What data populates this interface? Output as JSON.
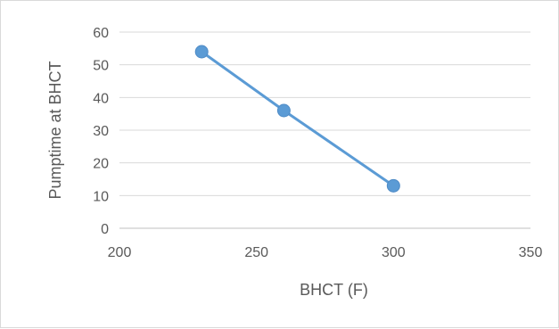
{
  "chart_data": {
    "type": "scatter",
    "title": "",
    "xlabel": "BHCT (F)",
    "ylabel": "Pumptime at BHCT",
    "xlim": [
      200,
      350
    ],
    "ylim": [
      0,
      60
    ],
    "x_ticks": [
      200,
      250,
      300,
      350
    ],
    "y_ticks": [
      0,
      10,
      20,
      30,
      40,
      50,
      60
    ],
    "grid": true,
    "legend": "none",
    "series": [
      {
        "x": [
          230,
          260,
          300
        ],
        "y": [
          54,
          36,
          13
        ],
        "color": "#5b9bd5",
        "marker": "circle",
        "connected": true
      }
    ]
  }
}
